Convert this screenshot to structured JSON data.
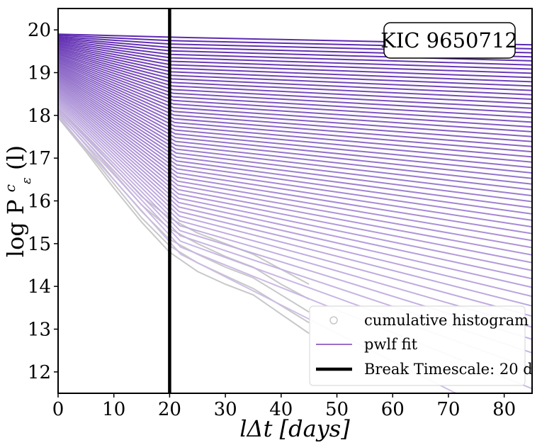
{
  "chart_data": {
    "type": "line",
    "xlabel": "lΔt [days]",
    "ylabel": "log P",
    "ylabel_superscript": "c",
    "ylabel_subscript": "ε",
    "ylabel_suffix": "(l)",
    "xlim": [
      0,
      85
    ],
    "ylim": [
      11.5,
      20.5
    ],
    "xticks": [
      0,
      10,
      20,
      30,
      40,
      50,
      60,
      70,
      80
    ],
    "yticks": [
      12,
      13,
      14,
      15,
      16,
      17,
      18,
      19,
      20
    ],
    "annotation": "KIC 9650712",
    "break_timescale_days": 20,
    "legend": {
      "position": "lower-right",
      "entries": [
        {
          "label": "cumulative histogram",
          "marker": "circle-open",
          "color": "#c8c8c8"
        },
        {
          "label": "pwlf fit",
          "marker": "line",
          "color": "#9a6fc9"
        },
        {
          "label": "Break Timescale: 20 d",
          "marker": "thick-line",
          "color": "#000000"
        }
      ]
    },
    "series_family": {
      "count": 55,
      "description": "piecewise linear fits of log cumulative histogram, one per epsilon threshold",
      "start_range": [
        17.95,
        19.9
      ],
      "break_x": 20,
      "value_at_break_range": [
        14.75,
        19.83
      ],
      "end_x": 85,
      "value_at_end_range": [
        10.6,
        19.65
      ],
      "color_light": "#c9b8e4",
      "color_dark": "#4b12a8"
    },
    "histogram_family": {
      "count": 5,
      "color": "#c8c8c8",
      "x": [
        0,
        5,
        10,
        15,
        20,
        25,
        30,
        35,
        40,
        45
      ],
      "values": [
        [
          17.95,
          17.15,
          16.3,
          15.5,
          14.8,
          14.35,
          14.05,
          13.8,
          13.35,
          12.9
        ],
        [
          18.0,
          17.2,
          16.4,
          15.6,
          14.95,
          14.55,
          14.25,
          13.95,
          13.55,
          13.15
        ],
        [
          18.05,
          17.3,
          16.5,
          15.75,
          15.1,
          14.75,
          14.45,
          14.2,
          13.8,
          13.4
        ],
        [
          18.1,
          17.4,
          16.65,
          15.9,
          15.35,
          15.0,
          14.7,
          14.45,
          14.05,
          13.7
        ],
        [
          18.15,
          17.5,
          16.8,
          16.1,
          15.6,
          15.25,
          15.0,
          14.75,
          14.4,
          14.05
        ]
      ]
    }
  }
}
